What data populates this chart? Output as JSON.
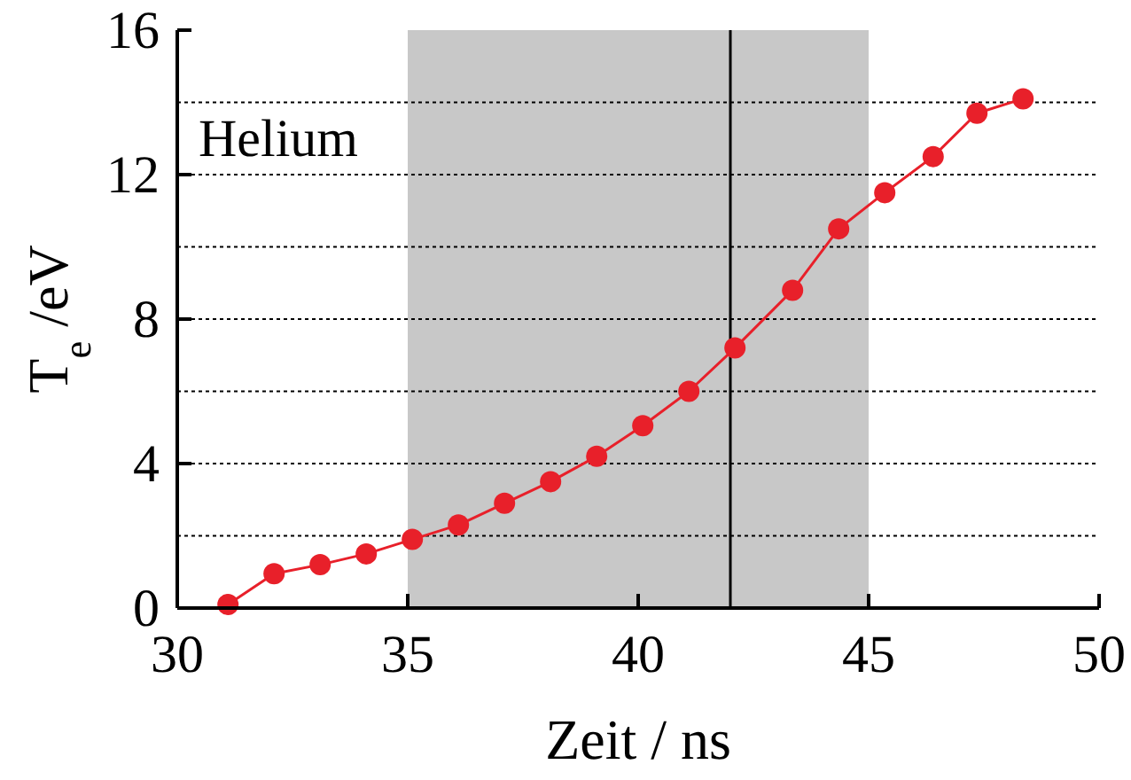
{
  "chart_data": {
    "type": "line",
    "xlabel": "Zeit / ns",
    "ylabel": "T$_{e}$ /eV",
    "annotations": [
      "Helium"
    ],
    "xlim": [
      30,
      50
    ],
    "xticks": [
      30,
      35,
      40,
      45,
      50
    ],
    "ylim": [
      0,
      16
    ],
    "yticks": [
      0,
      4,
      8,
      12,
      16
    ],
    "grid": "y",
    "marker": "circle",
    "line_style": "solid",
    "bands": [
      {
        "axis": "x",
        "from": 35,
        "to": 45,
        "color": "#c8c8c8"
      }
    ],
    "ref_lines": [
      {
        "axis": "x",
        "value": 42,
        "color": "#000000"
      }
    ],
    "series": [
      {
        "color": "#e8202a",
        "x": [
          31.1,
          32.1,
          33.1,
          34.1,
          35.1,
          36.1,
          37.1,
          38.1,
          39.1,
          40.1,
          41.1,
          42.1,
          43.35,
          44.35,
          45.35,
          46.4,
          47.35,
          48.35
        ],
        "values": [
          0.1,
          0.95,
          1.2,
          1.5,
          1.9,
          2.3,
          2.9,
          3.5,
          4.2,
          5.05,
          6.0,
          7.2,
          8.8,
          10.5,
          11.5,
          12.5,
          13.7,
          14.1
        ]
      }
    ]
  }
}
